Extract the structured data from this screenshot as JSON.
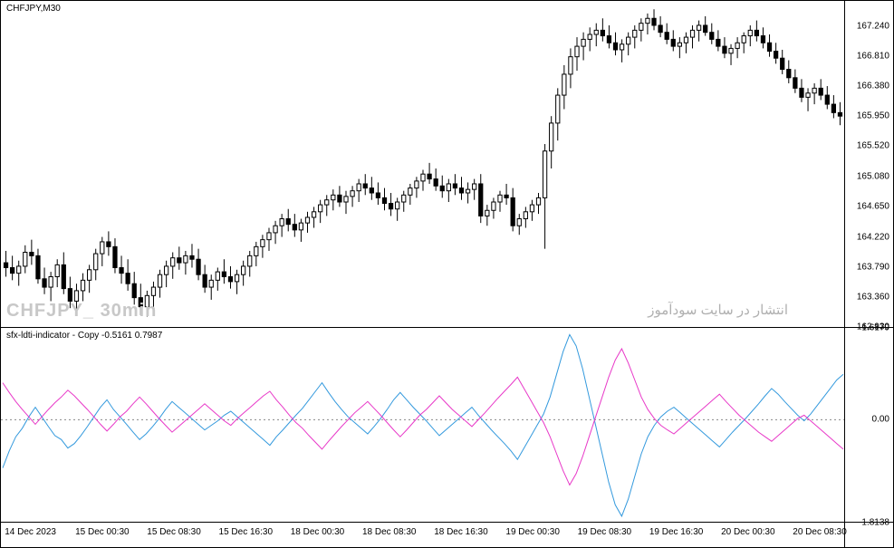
{
  "symbol_label": "CHFJPY,M30",
  "watermark_left": "CHFJPY_ 30min",
  "watermark_right": "انتشار در سایت سودآموز",
  "indicator_title": "sfx-ldti-indicator - Copy -0.5161 0.7987",
  "price_chart": {
    "type": "candlestick",
    "ylim": [
      162.93,
      167.6
    ],
    "yticks": [
      162.93,
      163.36,
      163.79,
      164.22,
      164.65,
      165.08,
      165.52,
      165.95,
      166.38,
      166.81,
      167.24
    ],
    "ytick_labels": [
      "162.930",
      "163.360",
      "163.790",
      "164.220",
      "164.650",
      "165.080",
      "165.520",
      "165.950",
      "166.380",
      "166.810",
      "167.240"
    ],
    "candle_color": "#000000",
    "background_color": "#ffffff",
    "candles": [
      {
        "o": 163.85,
        "h": 164.02,
        "l": 163.65,
        "c": 163.78
      },
      {
        "o": 163.78,
        "h": 163.95,
        "l": 163.6,
        "c": 163.7
      },
      {
        "o": 163.7,
        "h": 163.88,
        "l": 163.52,
        "c": 163.8
      },
      {
        "o": 163.8,
        "h": 164.1,
        "l": 163.7,
        "c": 164.0
      },
      {
        "o": 164.0,
        "h": 164.18,
        "l": 163.82,
        "c": 163.95
      },
      {
        "o": 163.95,
        "h": 164.05,
        "l": 163.55,
        "c": 163.62
      },
      {
        "o": 163.62,
        "h": 163.78,
        "l": 163.4,
        "c": 163.5
      },
      {
        "o": 163.5,
        "h": 163.72,
        "l": 163.3,
        "c": 163.65
      },
      {
        "o": 163.65,
        "h": 163.9,
        "l": 163.5,
        "c": 163.82
      },
      {
        "o": 163.82,
        "h": 164.0,
        "l": 163.4,
        "c": 163.48
      },
      {
        "o": 163.48,
        "h": 163.65,
        "l": 163.2,
        "c": 163.3
      },
      {
        "o": 163.3,
        "h": 163.55,
        "l": 163.12,
        "c": 163.45
      },
      {
        "o": 163.45,
        "h": 163.7,
        "l": 163.3,
        "c": 163.6
      },
      {
        "o": 163.6,
        "h": 163.82,
        "l": 163.42,
        "c": 163.75
      },
      {
        "o": 163.75,
        "h": 164.05,
        "l": 163.6,
        "c": 163.98
      },
      {
        "o": 163.98,
        "h": 164.22,
        "l": 163.8,
        "c": 164.15
      },
      {
        "o": 164.15,
        "h": 164.3,
        "l": 163.95,
        "c": 164.08
      },
      {
        "o": 164.08,
        "h": 164.2,
        "l": 163.7,
        "c": 163.78
      },
      {
        "o": 163.78,
        "h": 163.95,
        "l": 163.55,
        "c": 163.7
      },
      {
        "o": 163.7,
        "h": 163.9,
        "l": 163.45,
        "c": 163.55
      },
      {
        "o": 163.55,
        "h": 163.72,
        "l": 163.25,
        "c": 163.35
      },
      {
        "o": 163.35,
        "h": 163.55,
        "l": 163.1,
        "c": 163.22
      },
      {
        "o": 163.22,
        "h": 163.45,
        "l": 163.08,
        "c": 163.38
      },
      {
        "o": 163.38,
        "h": 163.58,
        "l": 163.2,
        "c": 163.5
      },
      {
        "o": 163.5,
        "h": 163.75,
        "l": 163.35,
        "c": 163.68
      },
      {
        "o": 163.68,
        "h": 163.88,
        "l": 163.5,
        "c": 163.8
      },
      {
        "o": 163.8,
        "h": 164.0,
        "l": 163.62,
        "c": 163.92
      },
      {
        "o": 163.92,
        "h": 164.08,
        "l": 163.75,
        "c": 163.85
      },
      {
        "o": 163.85,
        "h": 164.02,
        "l": 163.68,
        "c": 163.95
      },
      {
        "o": 163.95,
        "h": 164.12,
        "l": 163.78,
        "c": 163.9
      },
      {
        "o": 163.9,
        "h": 164.05,
        "l": 163.6,
        "c": 163.68
      },
      {
        "o": 163.68,
        "h": 163.82,
        "l": 163.42,
        "c": 163.5
      },
      {
        "o": 163.5,
        "h": 163.68,
        "l": 163.32,
        "c": 163.6
      },
      {
        "o": 163.6,
        "h": 163.78,
        "l": 163.45,
        "c": 163.72
      },
      {
        "o": 163.72,
        "h": 163.9,
        "l": 163.55,
        "c": 163.65
      },
      {
        "o": 163.65,
        "h": 163.8,
        "l": 163.48,
        "c": 163.58
      },
      {
        "o": 163.58,
        "h": 163.75,
        "l": 163.4,
        "c": 163.68
      },
      {
        "o": 163.68,
        "h": 163.88,
        "l": 163.52,
        "c": 163.8
      },
      {
        "o": 163.8,
        "h": 164.02,
        "l": 163.65,
        "c": 163.95
      },
      {
        "o": 163.95,
        "h": 164.15,
        "l": 163.8,
        "c": 164.08
      },
      {
        "o": 164.08,
        "h": 164.25,
        "l": 163.92,
        "c": 164.18
      },
      {
        "o": 164.18,
        "h": 164.35,
        "l": 164.02,
        "c": 164.28
      },
      {
        "o": 164.28,
        "h": 164.45,
        "l": 164.12,
        "c": 164.38
      },
      {
        "o": 164.38,
        "h": 164.55,
        "l": 164.22,
        "c": 164.48
      },
      {
        "o": 164.48,
        "h": 164.62,
        "l": 164.3,
        "c": 164.4
      },
      {
        "o": 164.4,
        "h": 164.55,
        "l": 164.22,
        "c": 164.32
      },
      {
        "o": 164.32,
        "h": 164.48,
        "l": 164.15,
        "c": 164.42
      },
      {
        "o": 164.42,
        "h": 164.58,
        "l": 164.28,
        "c": 164.5
      },
      {
        "o": 164.5,
        "h": 164.65,
        "l": 164.35,
        "c": 164.58
      },
      {
        "o": 164.58,
        "h": 164.75,
        "l": 164.42,
        "c": 164.68
      },
      {
        "o": 164.68,
        "h": 164.82,
        "l": 164.52,
        "c": 164.75
      },
      {
        "o": 164.75,
        "h": 164.9,
        "l": 164.6,
        "c": 164.82
      },
      {
        "o": 164.82,
        "h": 164.95,
        "l": 164.65,
        "c": 164.72
      },
      {
        "o": 164.72,
        "h": 164.88,
        "l": 164.55,
        "c": 164.8
      },
      {
        "o": 164.8,
        "h": 164.95,
        "l": 164.65,
        "c": 164.88
      },
      {
        "o": 164.88,
        "h": 165.05,
        "l": 164.72,
        "c": 164.98
      },
      {
        "o": 164.98,
        "h": 165.12,
        "l": 164.82,
        "c": 164.92
      },
      {
        "o": 164.92,
        "h": 165.08,
        "l": 164.75,
        "c": 164.85
      },
      {
        "o": 164.85,
        "h": 165.0,
        "l": 164.68,
        "c": 164.78
      },
      {
        "o": 164.78,
        "h": 164.92,
        "l": 164.6,
        "c": 164.7
      },
      {
        "o": 164.7,
        "h": 164.85,
        "l": 164.52,
        "c": 164.62
      },
      {
        "o": 164.62,
        "h": 164.78,
        "l": 164.45,
        "c": 164.72
      },
      {
        "o": 164.72,
        "h": 164.88,
        "l": 164.58,
        "c": 164.82
      },
      {
        "o": 164.82,
        "h": 164.98,
        "l": 164.68,
        "c": 164.92
      },
      {
        "o": 164.92,
        "h": 165.08,
        "l": 164.78,
        "c": 165.02
      },
      {
        "o": 165.02,
        "h": 165.18,
        "l": 164.88,
        "c": 165.12
      },
      {
        "o": 165.12,
        "h": 165.28,
        "l": 164.98,
        "c": 165.05
      },
      {
        "o": 165.05,
        "h": 165.2,
        "l": 164.88,
        "c": 164.95
      },
      {
        "o": 164.95,
        "h": 165.1,
        "l": 164.78,
        "c": 164.88
      },
      {
        "o": 164.88,
        "h": 165.05,
        "l": 164.72,
        "c": 164.98
      },
      {
        "o": 164.98,
        "h": 165.12,
        "l": 164.82,
        "c": 164.92
      },
      {
        "o": 164.92,
        "h": 165.08,
        "l": 164.75,
        "c": 164.85
      },
      {
        "o": 164.85,
        "h": 165.0,
        "l": 164.7,
        "c": 164.9
      },
      {
        "o": 164.9,
        "h": 165.05,
        "l": 164.75,
        "c": 164.98
      },
      {
        "o": 164.98,
        "h": 165.12,
        "l": 164.42,
        "c": 164.52
      },
      {
        "o": 164.52,
        "h": 164.68,
        "l": 164.38,
        "c": 164.6
      },
      {
        "o": 164.6,
        "h": 164.78,
        "l": 164.48,
        "c": 164.72
      },
      {
        "o": 164.72,
        "h": 164.88,
        "l": 164.58,
        "c": 164.82
      },
      {
        "o": 164.82,
        "h": 164.98,
        "l": 164.68,
        "c": 164.78
      },
      {
        "o": 164.78,
        "h": 164.92,
        "l": 164.3,
        "c": 164.38
      },
      {
        "o": 164.38,
        "h": 164.55,
        "l": 164.25,
        "c": 164.48
      },
      {
        "o": 164.48,
        "h": 164.65,
        "l": 164.35,
        "c": 164.58
      },
      {
        "o": 164.58,
        "h": 164.75,
        "l": 164.45,
        "c": 164.68
      },
      {
        "o": 164.68,
        "h": 164.85,
        "l": 164.55,
        "c": 164.78
      },
      {
        "o": 164.78,
        "h": 165.55,
        "l": 164.05,
        "c": 165.45
      },
      {
        "o": 165.45,
        "h": 165.95,
        "l": 165.2,
        "c": 165.85
      },
      {
        "o": 165.85,
        "h": 166.35,
        "l": 165.6,
        "c": 166.25
      },
      {
        "o": 166.25,
        "h": 166.68,
        "l": 166.05,
        "c": 166.55
      },
      {
        "o": 166.55,
        "h": 166.92,
        "l": 166.35,
        "c": 166.8
      },
      {
        "o": 166.8,
        "h": 167.08,
        "l": 166.6,
        "c": 166.95
      },
      {
        "o": 166.95,
        "h": 167.15,
        "l": 166.75,
        "c": 167.05
      },
      {
        "o": 167.05,
        "h": 167.22,
        "l": 166.88,
        "c": 167.12
      },
      {
        "o": 167.12,
        "h": 167.28,
        "l": 166.95,
        "c": 167.18
      },
      {
        "o": 167.18,
        "h": 167.35,
        "l": 167.02,
        "c": 167.1
      },
      {
        "o": 167.1,
        "h": 167.25,
        "l": 166.92,
        "c": 167.0
      },
      {
        "o": 167.0,
        "h": 167.15,
        "l": 166.82,
        "c": 166.9
      },
      {
        "o": 166.9,
        "h": 167.05,
        "l": 166.72,
        "c": 166.98
      },
      {
        "o": 166.98,
        "h": 167.15,
        "l": 166.82,
        "c": 167.08
      },
      {
        "o": 167.08,
        "h": 167.25,
        "l": 166.92,
        "c": 167.18
      },
      {
        "o": 167.18,
        "h": 167.35,
        "l": 167.02,
        "c": 167.28
      },
      {
        "o": 167.28,
        "h": 167.42,
        "l": 167.12,
        "c": 167.35
      },
      {
        "o": 167.35,
        "h": 167.48,
        "l": 167.18,
        "c": 167.25
      },
      {
        "o": 167.25,
        "h": 167.38,
        "l": 167.08,
        "c": 167.15
      },
      {
        "o": 167.15,
        "h": 167.28,
        "l": 166.98,
        "c": 167.05
      },
      {
        "o": 167.05,
        "h": 167.18,
        "l": 166.88,
        "c": 166.95
      },
      {
        "o": 166.95,
        "h": 167.08,
        "l": 166.78,
        "c": 167.0
      },
      {
        "o": 167.0,
        "h": 167.15,
        "l": 166.85,
        "c": 167.08
      },
      {
        "o": 167.08,
        "h": 167.25,
        "l": 166.92,
        "c": 167.18
      },
      {
        "o": 167.18,
        "h": 167.32,
        "l": 167.02,
        "c": 167.25
      },
      {
        "o": 167.25,
        "h": 167.38,
        "l": 167.1,
        "c": 167.15
      },
      {
        "o": 167.15,
        "h": 167.28,
        "l": 166.98,
        "c": 167.05
      },
      {
        "o": 167.05,
        "h": 167.18,
        "l": 166.88,
        "c": 166.95
      },
      {
        "o": 166.95,
        "h": 167.08,
        "l": 166.78,
        "c": 166.85
      },
      {
        "o": 166.85,
        "h": 166.98,
        "l": 166.68,
        "c": 166.92
      },
      {
        "o": 166.92,
        "h": 167.08,
        "l": 166.78,
        "c": 167.0
      },
      {
        "o": 167.0,
        "h": 167.15,
        "l": 166.85,
        "c": 167.1
      },
      {
        "o": 167.1,
        "h": 167.25,
        "l": 166.95,
        "c": 167.18
      },
      {
        "o": 167.18,
        "h": 167.32,
        "l": 167.02,
        "c": 167.1
      },
      {
        "o": 167.1,
        "h": 167.22,
        "l": 166.92,
        "c": 167.0
      },
      {
        "o": 167.0,
        "h": 167.12,
        "l": 166.8,
        "c": 166.88
      },
      {
        "o": 166.88,
        "h": 167.0,
        "l": 166.7,
        "c": 166.78
      },
      {
        "o": 166.78,
        "h": 166.9,
        "l": 166.55,
        "c": 166.62
      },
      {
        "o": 166.62,
        "h": 166.75,
        "l": 166.42,
        "c": 166.5
      },
      {
        "o": 166.5,
        "h": 166.62,
        "l": 166.28,
        "c": 166.35
      },
      {
        "o": 166.35,
        "h": 166.48,
        "l": 166.15,
        "c": 166.22
      },
      {
        "o": 166.22,
        "h": 166.35,
        "l": 166.02,
        "c": 166.28
      },
      {
        "o": 166.28,
        "h": 166.42,
        "l": 166.12,
        "c": 166.35
      },
      {
        "o": 166.35,
        "h": 166.48,
        "l": 166.18,
        "c": 166.25
      },
      {
        "o": 166.25,
        "h": 166.38,
        "l": 166.05,
        "c": 166.12
      },
      {
        "o": 166.12,
        "h": 166.25,
        "l": 165.92,
        "c": 166.0
      },
      {
        "o": 166.0,
        "h": 166.15,
        "l": 165.82,
        "c": 165.95
      }
    ]
  },
  "indicator_chart": {
    "type": "line",
    "ylim": [
      -1.8138,
      1.6179
    ],
    "ytick_labels": [
      "1.6179",
      "0.00",
      "-1.8138"
    ],
    "yticks": [
      1.6179,
      0.0,
      -1.8138
    ],
    "zero_line_color": "#888888",
    "background_color": "#ffffff",
    "series": [
      {
        "name": "blue_line",
        "color": "#3399dd",
        "line_width": 1,
        "values": [
          -0.85,
          -0.55,
          -0.3,
          -0.15,
          0.05,
          0.22,
          0.05,
          -0.12,
          -0.28,
          -0.35,
          -0.5,
          -0.42,
          -0.28,
          -0.12,
          0.05,
          0.22,
          0.35,
          0.18,
          0.05,
          -0.08,
          -0.22,
          -0.35,
          -0.25,
          -0.12,
          0.02,
          0.18,
          0.32,
          0.22,
          0.12,
          0.02,
          -0.08,
          -0.18,
          -0.1,
          -0.02,
          0.08,
          0.15,
          0.05,
          -0.05,
          -0.15,
          -0.25,
          -0.35,
          -0.45,
          -0.3,
          -0.18,
          -0.05,
          0.08,
          0.2,
          0.35,
          0.5,
          0.65,
          0.48,
          0.32,
          0.18,
          0.05,
          -0.05,
          -0.15,
          -0.25,
          -0.12,
          0.02,
          0.18,
          0.35,
          0.48,
          0.35,
          0.22,
          0.1,
          -0.02,
          -0.15,
          -0.28,
          -0.18,
          -0.08,
          0.02,
          0.12,
          0.22,
          0.08,
          -0.05,
          -0.18,
          -0.3,
          -0.42,
          -0.55,
          -0.7,
          -0.5,
          -0.3,
          -0.1,
          0.1,
          0.4,
          0.8,
          1.2,
          1.5,
          1.3,
          0.9,
          0.4,
          -0.1,
          -0.6,
          -1.1,
          -1.5,
          -1.7,
          -1.4,
          -1.0,
          -0.6,
          -0.3,
          -0.1,
          0.05,
          0.15,
          0.22,
          0.12,
          0.02,
          -0.08,
          -0.18,
          -0.28,
          -0.38,
          -0.48,
          -0.35,
          -0.22,
          -0.1,
          0.02,
          0.15,
          0.28,
          0.42,
          0.55,
          0.45,
          0.32,
          0.2,
          0.08,
          -0.02,
          0.1,
          0.25,
          0.4,
          0.55,
          0.7,
          0.8
        ]
      },
      {
        "name": "magenta_line",
        "color": "#e838c8",
        "line_width": 1,
        "values": [
          0.65,
          0.48,
          0.32,
          0.18,
          0.05,
          -0.08,
          0.05,
          0.18,
          0.3,
          0.4,
          0.52,
          0.42,
          0.3,
          0.18,
          0.05,
          -0.08,
          -0.2,
          -0.08,
          0.05,
          0.15,
          0.28,
          0.4,
          0.28,
          0.15,
          0.02,
          -0.1,
          -0.22,
          -0.12,
          -0.02,
          0.08,
          0.18,
          0.28,
          0.18,
          0.08,
          -0.02,
          -0.1,
          0.02,
          0.12,
          0.22,
          0.32,
          0.42,
          0.5,
          0.35,
          0.22,
          0.08,
          -0.05,
          -0.15,
          -0.28,
          -0.4,
          -0.52,
          -0.38,
          -0.25,
          -0.12,
          0.0,
          0.12,
          0.22,
          0.32,
          0.2,
          0.08,
          -0.05,
          -0.18,
          -0.3,
          -0.18,
          -0.05,
          0.08,
          0.18,
          0.3,
          0.42,
          0.3,
          0.18,
          0.08,
          -0.02,
          -0.12,
          0.0,
          0.12,
          0.25,
          0.38,
          0.5,
          0.62,
          0.75,
          0.55,
          0.35,
          0.15,
          -0.05,
          -0.3,
          -0.6,
          -0.9,
          -1.15,
          -0.95,
          -0.65,
          -0.3,
          0.05,
          0.4,
          0.75,
          1.05,
          1.25,
          1.0,
          0.7,
          0.4,
          0.18,
          0.02,
          -0.1,
          -0.18,
          -0.25,
          -0.15,
          -0.05,
          0.05,
          0.15,
          0.25,
          0.35,
          0.45,
          0.32,
          0.2,
          0.08,
          -0.02,
          -0.12,
          -0.22,
          -0.3,
          -0.38,
          -0.28,
          -0.18,
          -0.08,
          0.02,
          0.08,
          -0.02,
          -0.12,
          -0.22,
          -0.32,
          -0.42,
          -0.52
        ]
      }
    ]
  },
  "xaxis": {
    "labels": [
      "14 Dec 2023",
      "15 Dec 00:30",
      "15 Dec 08:30",
      "15 Dec 16:30",
      "18 Dec 00:30",
      "18 Dec 08:30",
      "18 Dec 16:30",
      "19 Dec 00:30",
      "19 Dec 08:30",
      "19 Dec 16:30",
      "20 Dec 00:30",
      "20 Dec 08:30"
    ],
    "positions_pct": [
      3.5,
      12,
      20.5,
      29,
      37.5,
      46,
      54.5,
      63,
      71.5,
      80,
      88.5,
      97
    ]
  }
}
